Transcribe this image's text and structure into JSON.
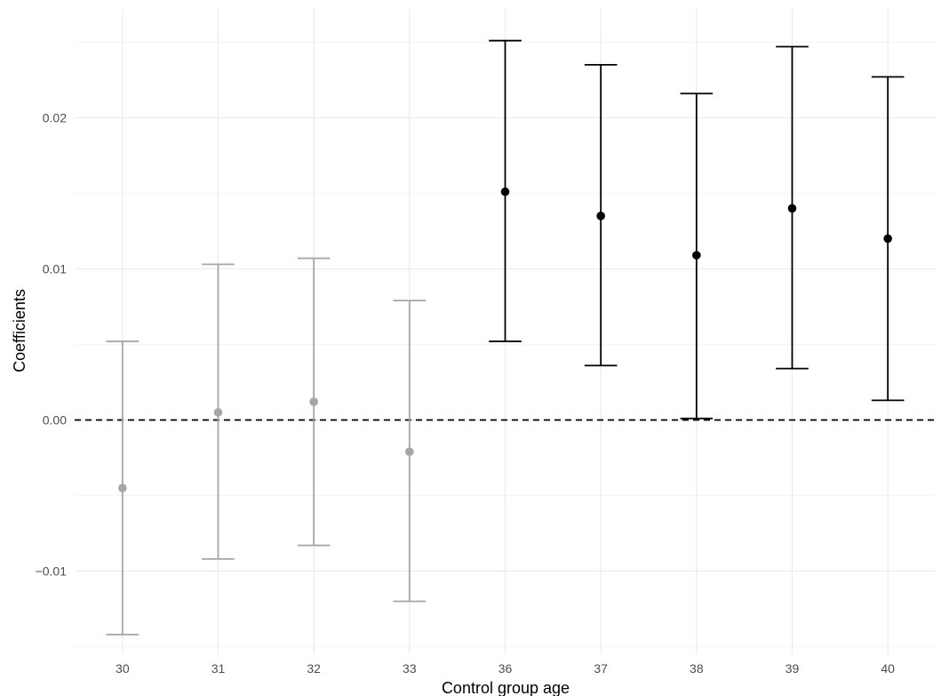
{
  "chart_data": {
    "type": "errorbar",
    "xlabel": "Control group age",
    "ylabel": "Coefficients",
    "categories": [
      "30",
      "31",
      "32",
      "33",
      "36",
      "37",
      "38",
      "39",
      "40"
    ],
    "estimates": [
      -0.0045,
      0.0005,
      0.0012,
      -0.0021,
      0.0151,
      0.0135,
      0.0109,
      0.014,
      0.012
    ],
    "ci_lower": [
      -0.0142,
      -0.0092,
      -0.0083,
      -0.012,
      0.0052,
      0.0036,
      0.0001,
      0.0034,
      0.0013
    ],
    "ci_upper": [
      0.0052,
      0.0103,
      0.0107,
      0.0079,
      0.0251,
      0.0235,
      0.0216,
      0.0247,
      0.0227
    ],
    "highlighted": [
      false,
      false,
      false,
      false,
      true,
      true,
      true,
      true,
      true
    ],
    "ylim": [
      -0.0155,
      0.0272
    ],
    "yticks": [
      -0.01,
      0.0,
      0.01,
      0.02
    ],
    "ytick_labels": [
      "−0.01",
      "0.00",
      "0.01",
      "0.02"
    ],
    "reference_line": 0.0,
    "colors": {
      "highlighted": "#000000",
      "muted": "#a6a6a6",
      "grid_major": "#ebebeb",
      "grid_minor": "#f5f5f5",
      "reference": "#000000"
    },
    "grid": true,
    "legend": "none"
  }
}
